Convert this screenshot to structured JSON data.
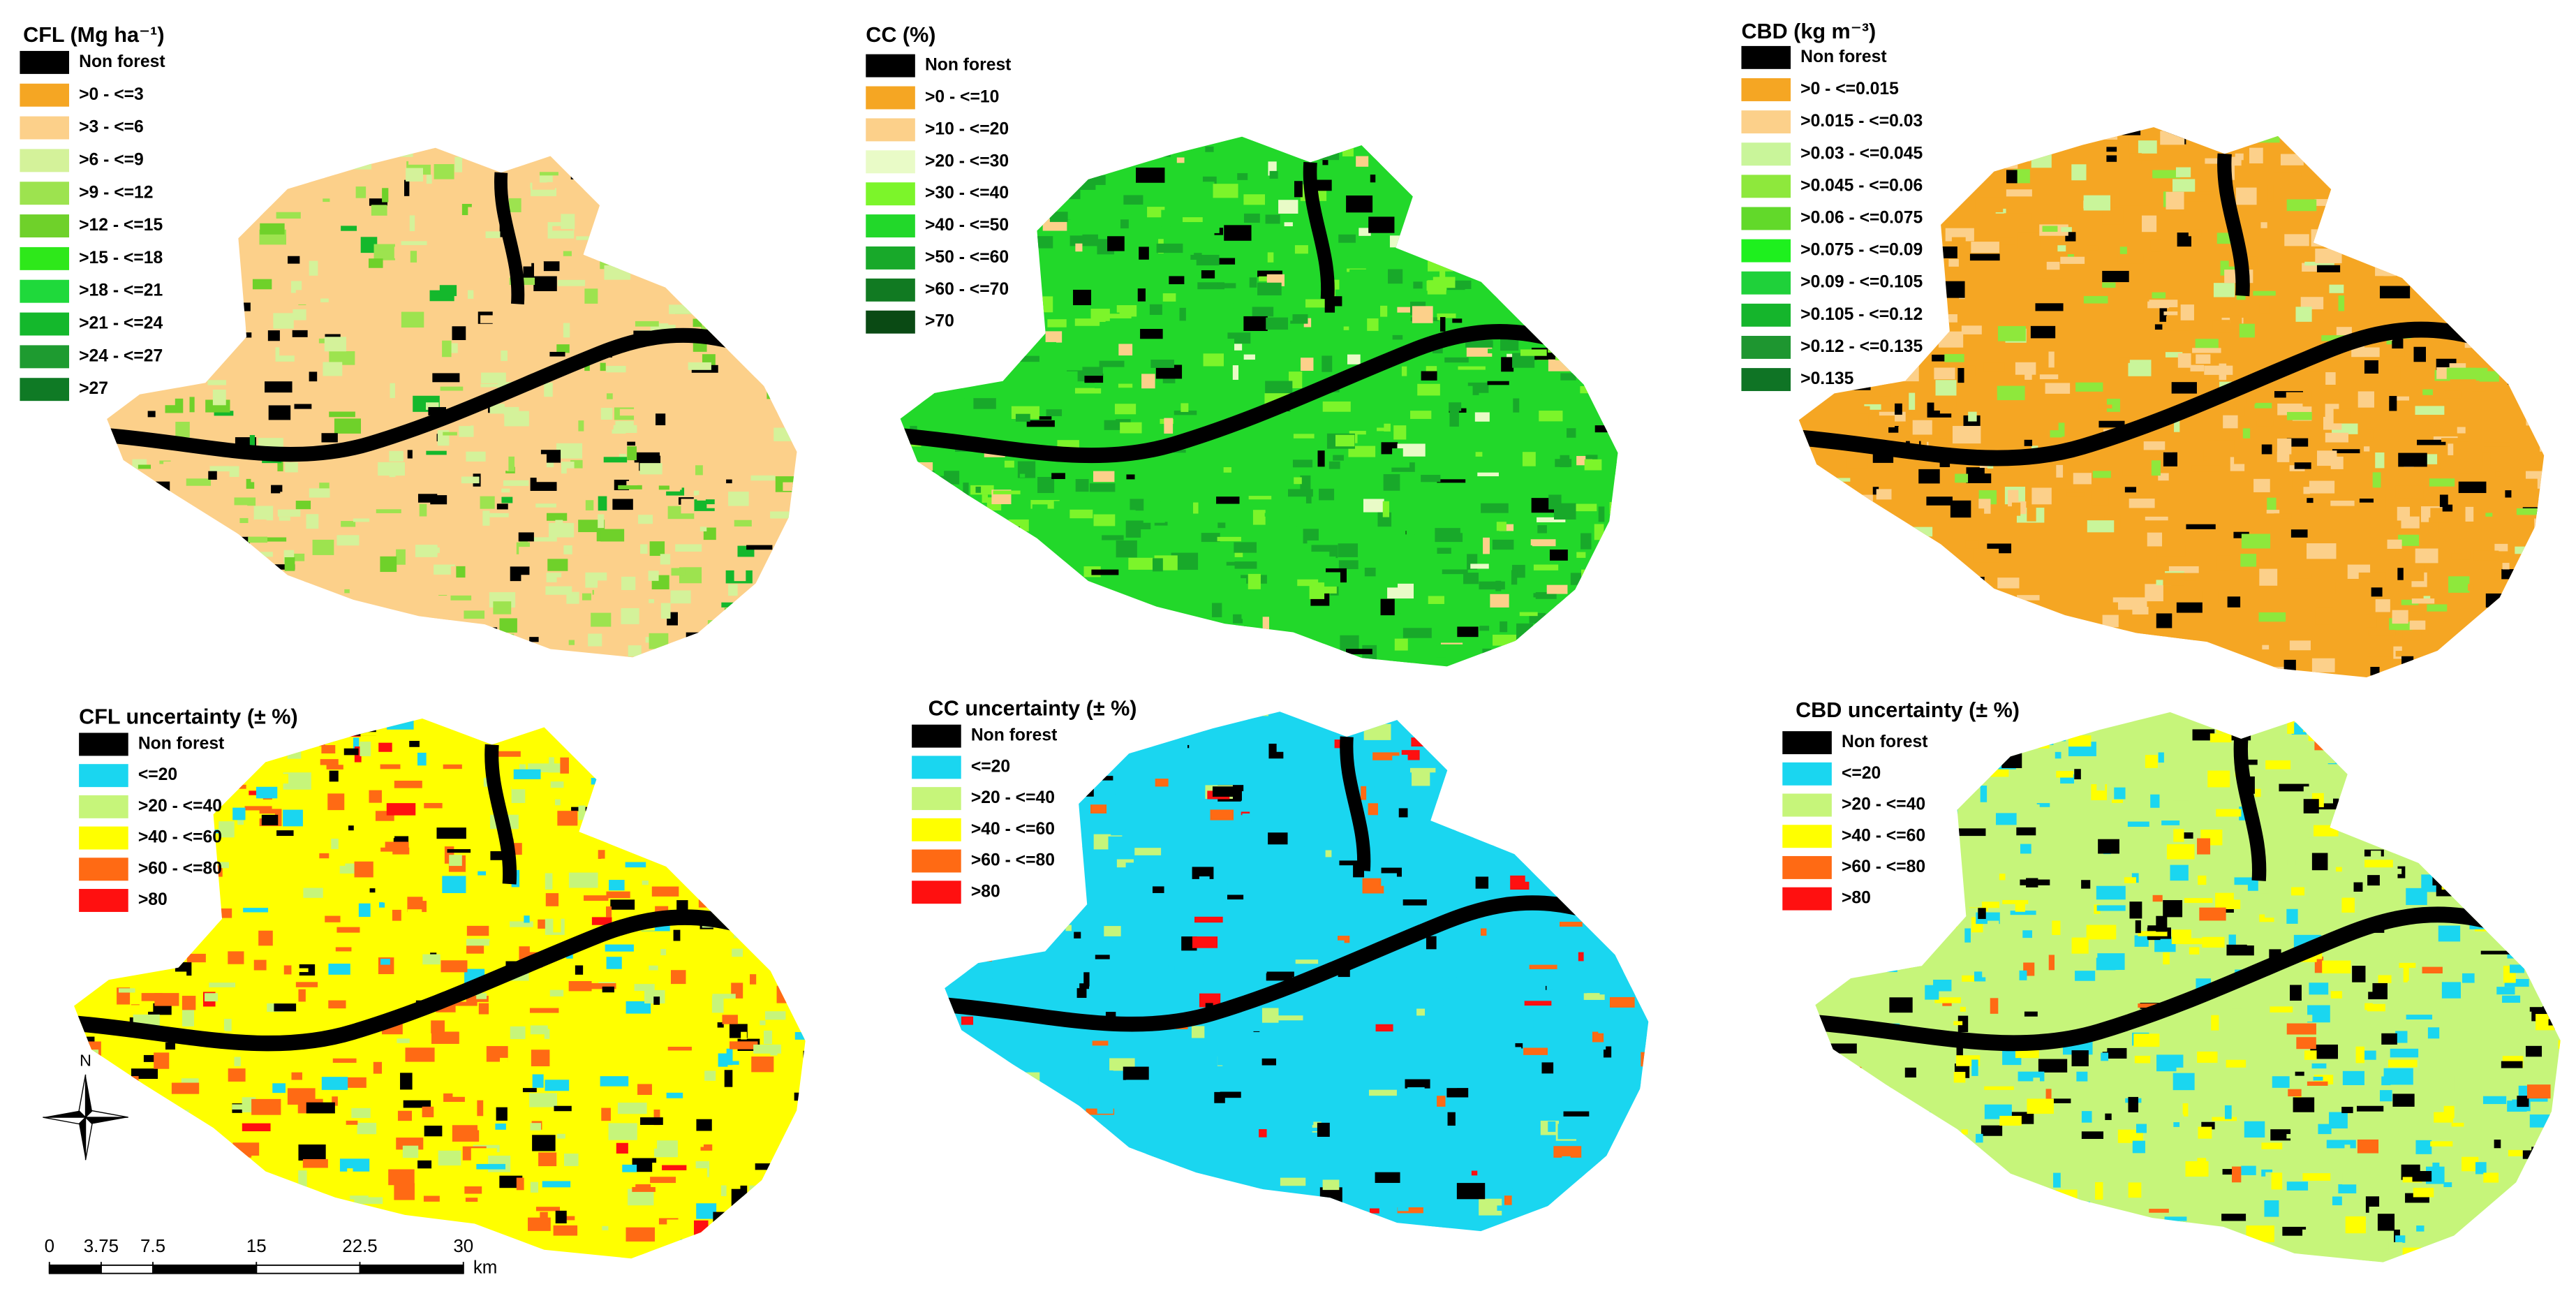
{
  "panels": [
    {
      "title": "CFL (Mg ha⁻¹)",
      "legend": [
        {
          "label": "Non forest",
          "color": "#000000"
        },
        {
          "label": ">0 - <=3",
          "color": "#f5a623"
        },
        {
          "label": ">3 - <=6",
          "color": "#fcd08a"
        },
        {
          "label": ">6 - <=9",
          "color": "#d4f29a"
        },
        {
          "label": ">9 - <=12",
          "color": "#9de34f"
        },
        {
          "label": ">12 - <=15",
          "color": "#6fd12a"
        },
        {
          "label": ">15 - <=18",
          "color": "#2ee81a"
        },
        {
          "label": ">18 - <=21",
          "color": "#1fd93b"
        },
        {
          "label": ">21 - <=24",
          "color": "#14b82c"
        },
        {
          "label": ">24 - <=27",
          "color": "#1e9b30"
        },
        {
          "label": ">27",
          "color": "#0f7a25"
        }
      ]
    },
    {
      "title": "CC (%)",
      "legend": [
        {
          "label": "Non forest",
          "color": "#000000"
        },
        {
          "label": ">0 - <=10",
          "color": "#f5a623"
        },
        {
          "label": ">10 - <=20",
          "color": "#fcd08a"
        },
        {
          "label": ">20 - <=30",
          "color": "#e9fbc7"
        },
        {
          "label": ">30 - <=40",
          "color": "#7cf52a"
        },
        {
          "label": ">40 - <=50",
          "color": "#22d82a"
        },
        {
          "label": ">50 - <=60",
          "color": "#18a92a"
        },
        {
          "label": ">60 - <=70",
          "color": "#117a22"
        },
        {
          "label": ">70",
          "color": "#0a4a14"
        }
      ]
    },
    {
      "title": "CBD (kg m⁻³)",
      "legend": [
        {
          "label": "Non forest",
          "color": "#000000"
        },
        {
          "label": ">0 - <=0.015",
          "color": "#f5a623"
        },
        {
          "label": ">0.015 - <=0.03",
          "color": "#fcd08a"
        },
        {
          "label": ">0.03 - <=0.045",
          "color": "#c9f59a"
        },
        {
          "label": ">0.045 - <=0.06",
          "color": "#8ee83c"
        },
        {
          "label": ">0.06 - <=0.075",
          "color": "#62d92a"
        },
        {
          "label": ">0.075 - <=0.09",
          "color": "#1ef01e"
        },
        {
          "label": ">0.09 - <=0.105",
          "color": "#1fd13a"
        },
        {
          "label": ">0.105 - <=0.12",
          "color": "#15b52c"
        },
        {
          "label": ">0.12 - <=0.135",
          "color": "#1e9630"
        },
        {
          "label": ">0.135",
          "color": "#0f7425"
        }
      ]
    },
    {
      "title": "CFL uncertainty (± %)",
      "legend": [
        {
          "label": "Non forest",
          "color": "#000000"
        },
        {
          "label": "<=20",
          "color": "#1ad6f0"
        },
        {
          "label": ">20 - <=40",
          "color": "#c6f57a"
        },
        {
          "label": ">40 - <=60",
          "color": "#ffff00"
        },
        {
          "label": ">60 - <=80",
          "color": "#ff6a14"
        },
        {
          "label": ">80",
          "color": "#ff1010"
        }
      ]
    },
    {
      "title": "CC uncertainty (± %)",
      "legend": [
        {
          "label": "Non forest",
          "color": "#000000"
        },
        {
          "label": "<=20",
          "color": "#1ad6f0"
        },
        {
          "label": ">20 - <=40",
          "color": "#c6f57a"
        },
        {
          "label": ">40 - <=60",
          "color": "#ffff00"
        },
        {
          "label": ">60 - <=80",
          "color": "#ff6a14"
        },
        {
          "label": ">80",
          "color": "#ff1010"
        }
      ]
    },
    {
      "title": "CBD uncertainty (± %)",
      "legend": [
        {
          "label": "Non forest",
          "color": "#000000"
        },
        {
          "label": "<=20",
          "color": "#1ad6f0"
        },
        {
          "label": ">20 - <=40",
          "color": "#c6f57a"
        },
        {
          "label": ">40 - <=60",
          "color": "#ffff00"
        },
        {
          "label": ">60 - <=80",
          "color": "#ff6a14"
        },
        {
          "label": ">80",
          "color": "#ff1010"
        }
      ]
    }
  ],
  "north": "N",
  "scale_bar": {
    "ticks": [
      0,
      3.75,
      7.5,
      15,
      22.5,
      30
    ],
    "unit": "km"
  }
}
